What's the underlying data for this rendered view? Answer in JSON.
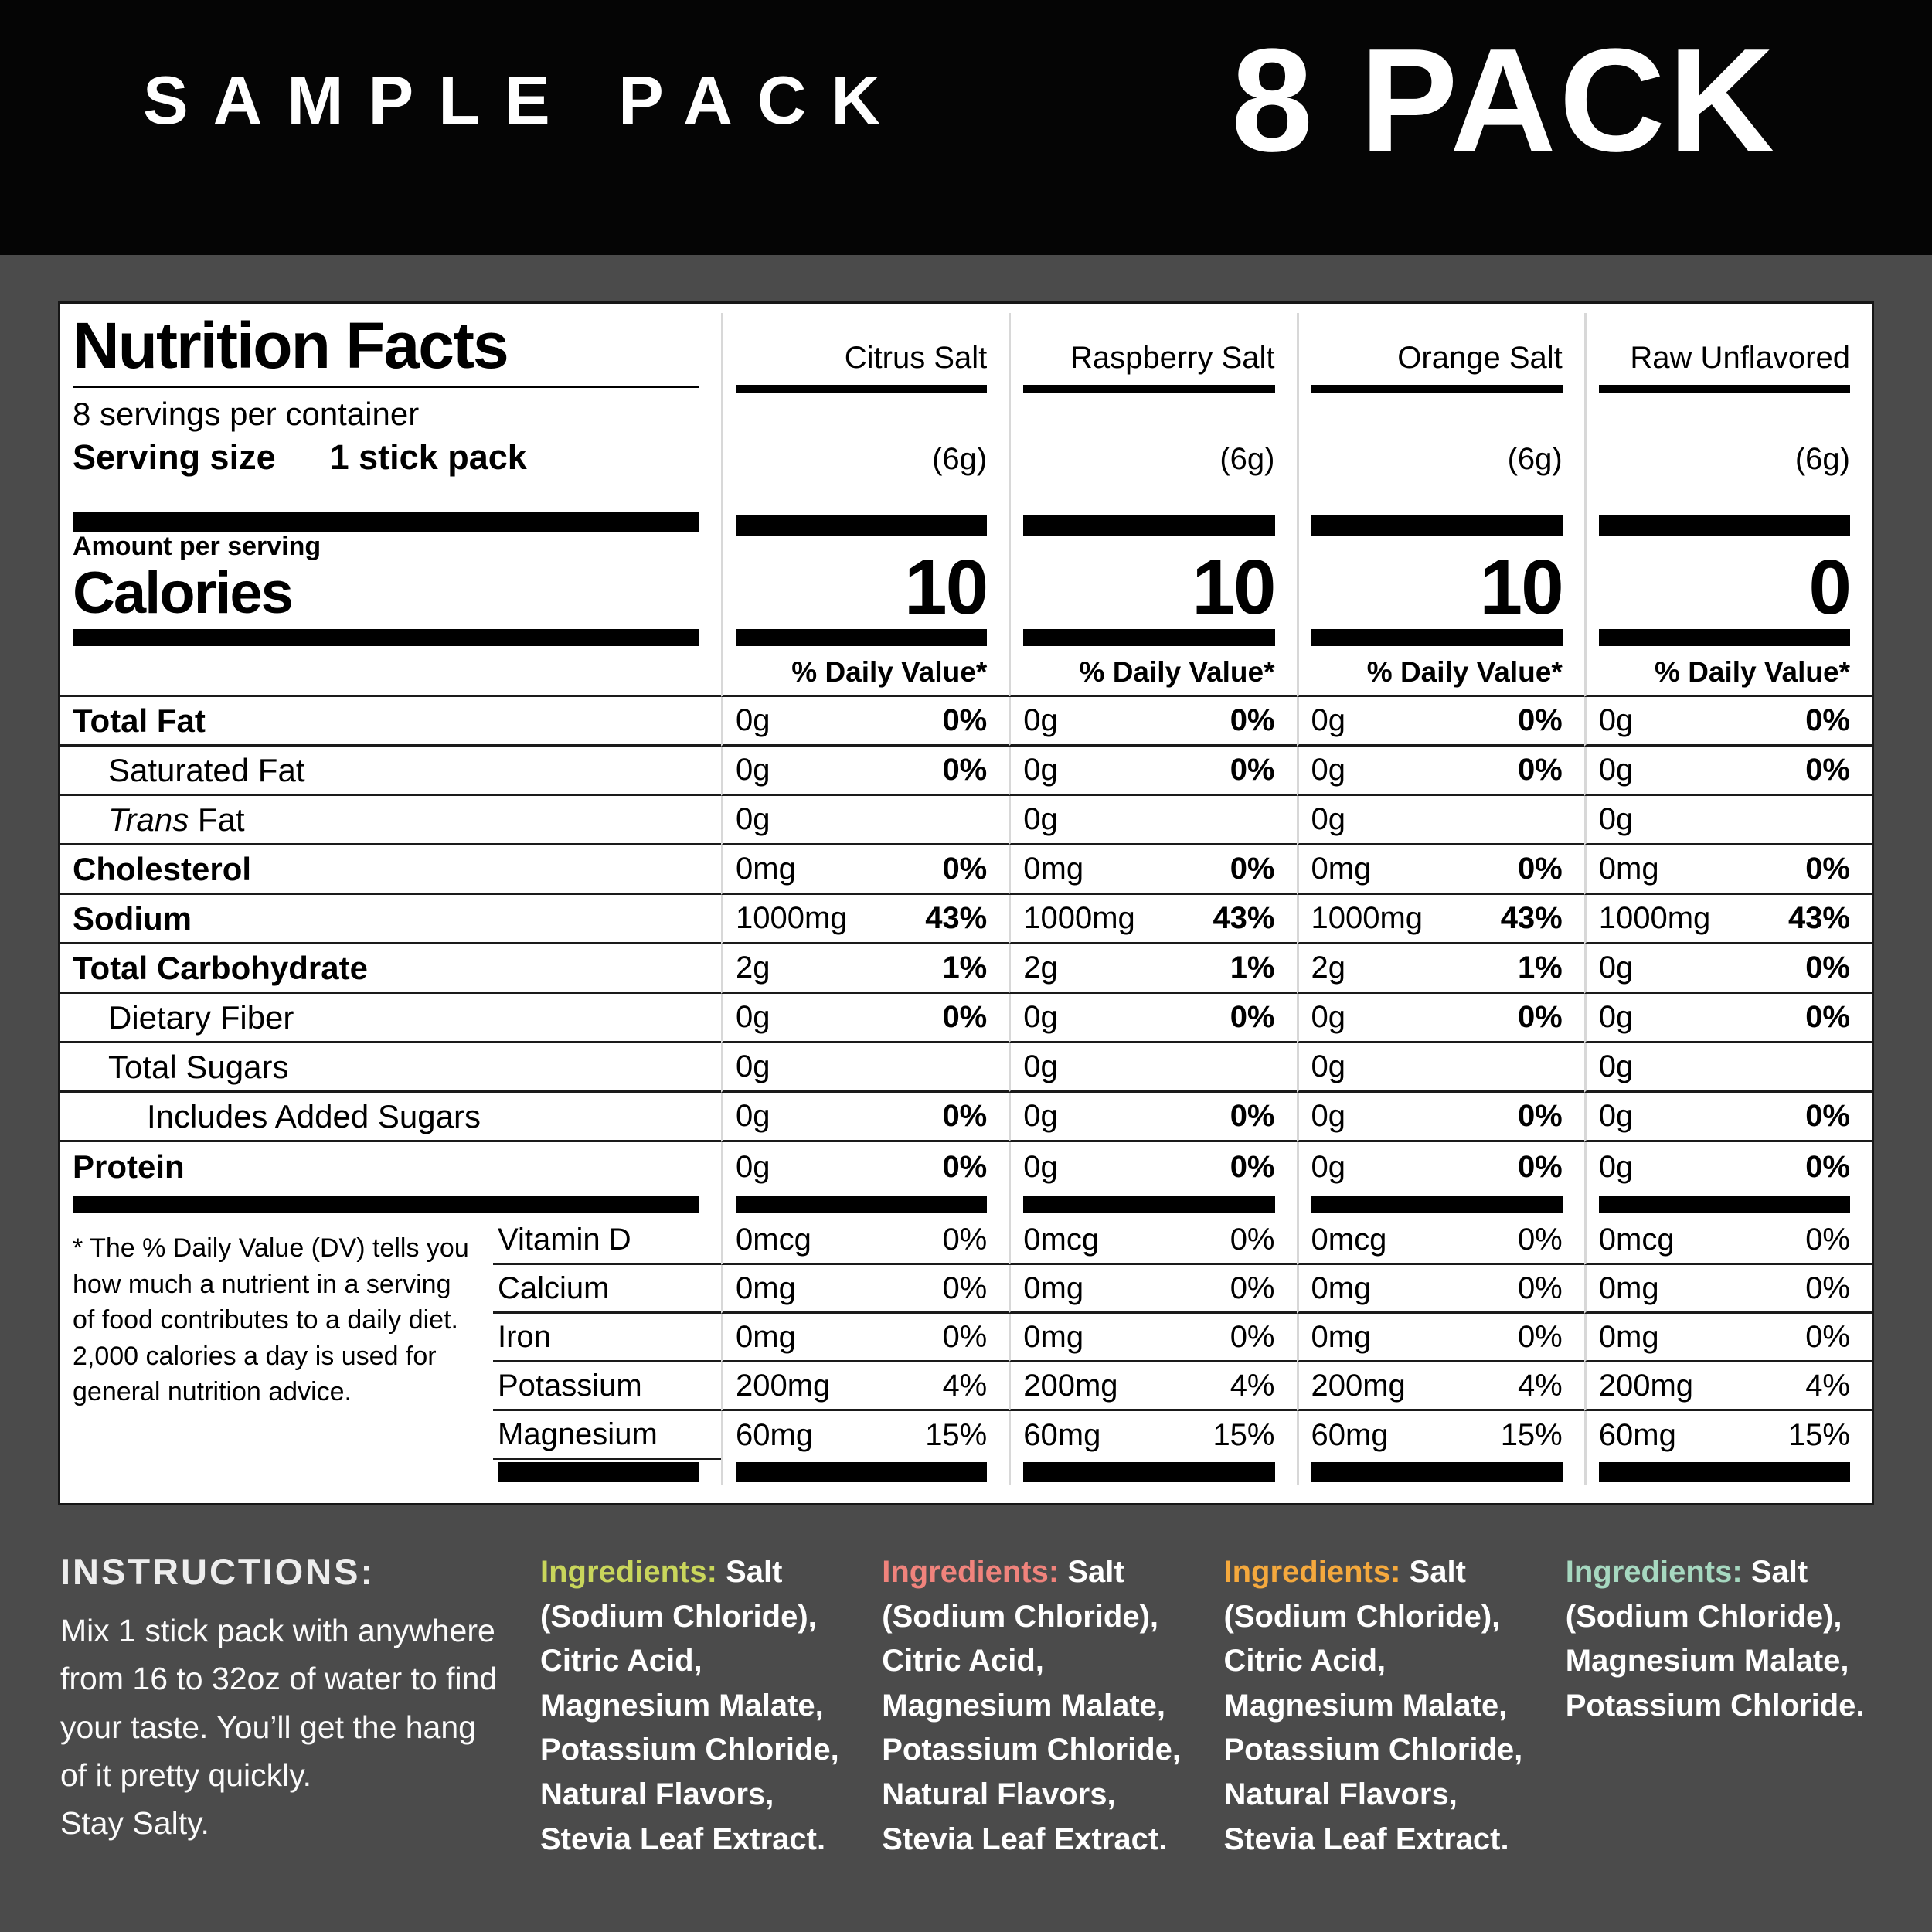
{
  "theme": {
    "page_bg": "#4b4b4b",
    "banner_bg": "#050505",
    "panel_bg": "#ffffff"
  },
  "banner": {
    "left_title": "SAMPLE PACK",
    "right_title": "8 PACK"
  },
  "nutrition": {
    "title": "Nutrition Facts",
    "servings_per_container": "8 servings per container",
    "serving_size_label": "Serving size",
    "serving_size_value": "1 stick pack",
    "amount_per_serving": "Amount per serving",
    "calories_label": "Calories",
    "daily_value_header": "% Daily Value*",
    "flavors": [
      {
        "name": "Citrus Salt",
        "weight": "(6g)",
        "calories": "10"
      },
      {
        "name": "Raspberry Salt",
        "weight": "(6g)",
        "calories": "10"
      },
      {
        "name": "Orange Salt",
        "weight": "(6g)",
        "calories": "10"
      },
      {
        "name": "Raw Unflavored",
        "weight": "(6g)",
        "calories": "0"
      }
    ],
    "rows": [
      {
        "label": "Total Fat",
        "values": [
          "0g",
          "0g",
          "0g",
          "0g"
        ],
        "percents": [
          "0%",
          "0%",
          "0%",
          "0%"
        ]
      },
      {
        "label": "Saturated Fat",
        "values": [
          "0g",
          "0g",
          "0g",
          "0g"
        ],
        "percents": [
          "0%",
          "0%",
          "0%",
          "0%"
        ]
      },
      {
        "label_italic": "Trans",
        "label": " Fat",
        "values": [
          "0g",
          "0g",
          "0g",
          "0g"
        ]
      },
      {
        "label": "Cholesterol",
        "values": [
          "0mg",
          "0mg",
          "0mg",
          "0mg"
        ],
        "percents": [
          "0%",
          "0%",
          "0%",
          "0%"
        ]
      },
      {
        "label": "Sodium",
        "values": [
          "1000mg",
          "1000mg",
          "1000mg",
          "1000mg"
        ],
        "percents": [
          "43%",
          "43%",
          "43%",
          "43%"
        ]
      },
      {
        "label": "Total Carbohydrate",
        "values": [
          "2g",
          "2g",
          "2g",
          "0g"
        ],
        "percents": [
          "1%",
          "1%",
          "1%",
          "0%"
        ]
      },
      {
        "label": "Dietary Fiber",
        "values": [
          "0g",
          "0g",
          "0g",
          "0g"
        ],
        "percents": [
          "0%",
          "0%",
          "0%",
          "0%"
        ]
      },
      {
        "label": "Total Sugars",
        "values": [
          "0g",
          "0g",
          "0g",
          "0g"
        ]
      },
      {
        "label": "Includes Added Sugars",
        "values": [
          "0g",
          "0g",
          "0g",
          "0g"
        ],
        "percents": [
          "0%",
          "0%",
          "0%",
          "0%"
        ]
      },
      {
        "label": "Protein",
        "values": [
          "0g",
          "0g",
          "0g",
          "0g"
        ],
        "percents": [
          "0%",
          "0%",
          "0%",
          "0%"
        ]
      }
    ],
    "footnote": "* The % Daily Value (DV) tells you how much a nutrient in a serving of food contributes to a daily diet. 2,000 calories a day is used for general nutrition advice.",
    "micros": [
      {
        "label": "Vitamin D",
        "values": [
          "0mcg",
          "0mcg",
          "0mcg",
          "0mcg"
        ],
        "percents": [
          "0%",
          "0%",
          "0%",
          "0%"
        ]
      },
      {
        "label": "Calcium",
        "values": [
          "0mg",
          "0mg",
          "0mg",
          "0mg"
        ],
        "percents": [
          "0%",
          "0%",
          "0%",
          "0%"
        ]
      },
      {
        "label": "Iron",
        "values": [
          "0mg",
          "0mg",
          "0mg",
          "0mg"
        ],
        "percents": [
          "0%",
          "0%",
          "0%",
          "0%"
        ]
      },
      {
        "label": "Potassium",
        "values": [
          "200mg",
          "200mg",
          "200mg",
          "200mg"
        ],
        "percents": [
          "4%",
          "4%",
          "4%",
          "4%"
        ]
      },
      {
        "label": "Magnesium",
        "values": [
          "60mg",
          "60mg",
          "60mg",
          "60mg"
        ],
        "percents": [
          "15%",
          "15%",
          "15%",
          "15%"
        ]
      }
    ]
  },
  "instructions": {
    "title": "INSTRUCTIONS:",
    "body": "Mix 1 stick pack with anywhere from 16 to 32oz of water to find your taste. You’ll get the hang of it pretty quickly.",
    "signoff": "Stay Salty."
  },
  "ingredients": [
    {
      "label": "Ingredients:",
      "accent": "#c9d65b",
      "text": "Salt (Sodium Chloride), Citric Acid, Magnesium Malate, Potassium Chloride, Natural Flavors, Stevia Leaf Extract."
    },
    {
      "label": "Ingredients:",
      "accent": "#f0837c",
      "text": "Salt (Sodium Chloride), Citric Acid, Magnesium Malate, Potassium Chloride, Natural Flavors, Stevia Leaf Extract."
    },
    {
      "label": "Ingredients:",
      "accent": "#f5a93d",
      "text": "Salt (Sodium Chloride), Citric Acid, Magnesium Malate, Potassium Chloride, Natural Flavors, Stevia Leaf Extract."
    },
    {
      "label": "Ingredients:",
      "accent": "#a6d8c0",
      "text": "Salt (Sodium Chloride), Magnesium Malate, Potassium Chloride."
    }
  ]
}
